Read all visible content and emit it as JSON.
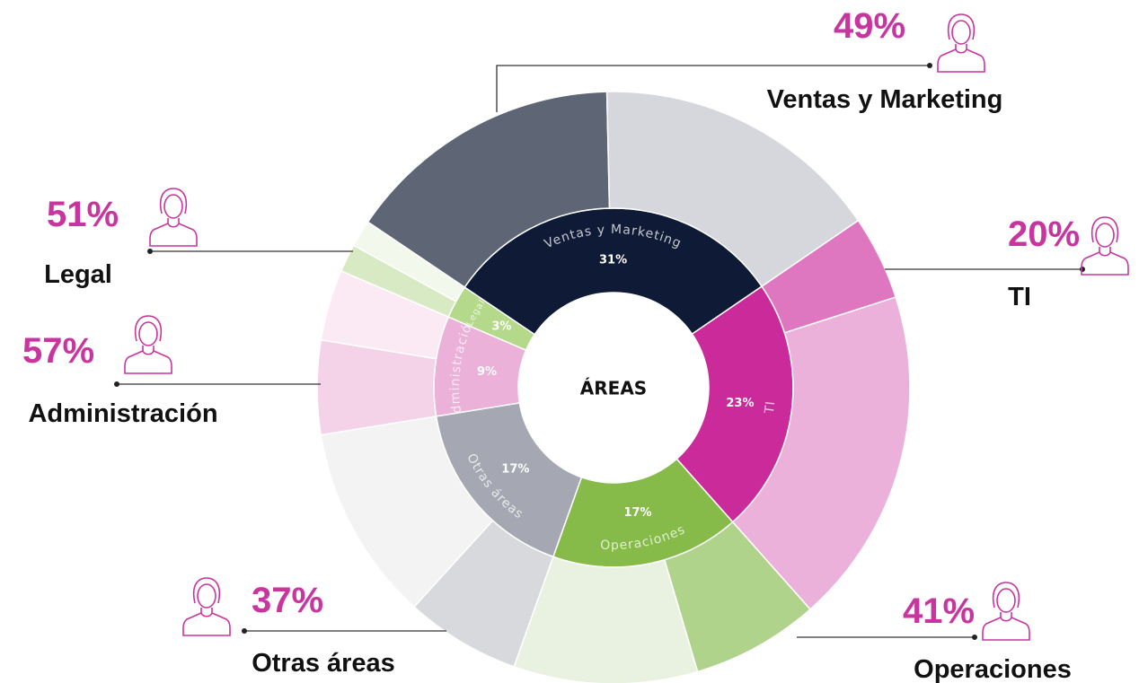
{
  "chart_data": {
    "type": "sunburst",
    "center_label": "ÁREAS",
    "categories": [
      "Ventas y Marketing",
      "TI",
      "Operaciones",
      "Otras áreas",
      "Administración",
      "Legal"
    ],
    "values": [
      31,
      23,
      17,
      17,
      9,
      3
    ],
    "value_labels": [
      "31%",
      "23%",
      "17%",
      "17%",
      "9%",
      "3%"
    ],
    "colors": [
      "#0e1a36",
      "#cb2a9b",
      "#86bb4a",
      "#a5a8b2",
      "#ebb1d9",
      "#b4d98a"
    ],
    "outer_values": [
      49,
      20,
      41,
      37,
      57,
      51
    ],
    "outer_value_labels": [
      "49%",
      "20%",
      "41%",
      "37%",
      "57%",
      "51%"
    ],
    "outer_colors": [
      "#5e6676",
      "#de77bf",
      "#b0d38b",
      "#d8d9dd",
      "#f4d3e8",
      "#d7eac3"
    ],
    "outer_rest_colors": [
      "#d6d7dc",
      "#ecb1da",
      "#e9f2e0",
      "#f3f3f3",
      "#fbeaf4",
      "#f2f8ec"
    ]
  }
}
